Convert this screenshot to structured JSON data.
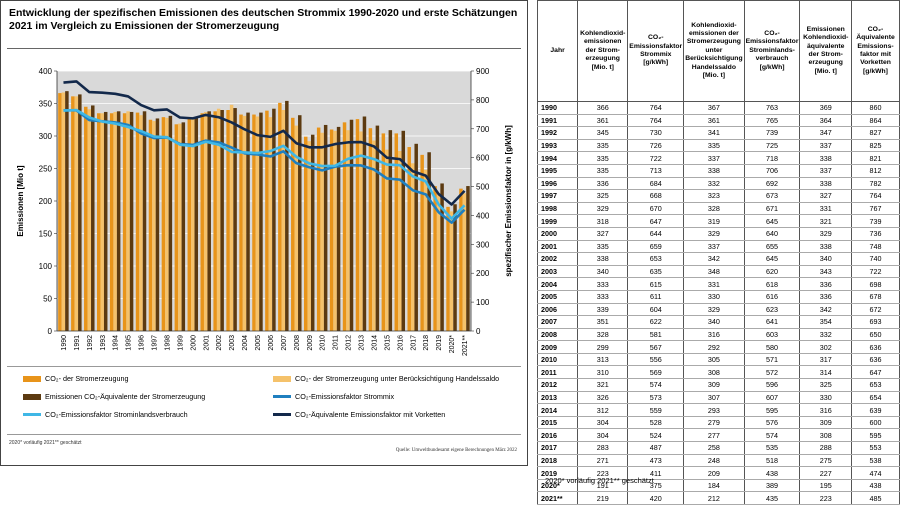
{
  "chart_title": "Entwicklung der spezifischen Emissionen des deutschen Strommix 1990-2020 und erste Schätzungen 2021 im Vergleich zu Emissionen der Stromerzeugung",
  "footnote": "2020* vorläufig   2021** geschätzt",
  "source": "Quelle: Umweltbundesamt eigene Berechnungen März 2022",
  "colors": {
    "bar1": "#E8941A",
    "bar2": "#F5C26B",
    "bar3": "#5C3A10",
    "line_mix": "#1F7FBF",
    "line_inland": "#3FB7E6",
    "line_vorkette": "#13294B",
    "plot_bg": "#D9D9D9"
  },
  "legend": [
    {
      "label": "CO₂- der Stromerzeugung",
      "type": "bar",
      "color": "#E8941A"
    },
    {
      "label": "CO₂- der Stromerzeugung unter Berücksichtigung Handelssaldo",
      "type": "bar",
      "color": "#F5C26B"
    },
    {
      "label": "Emissionen CO₂-Äquivalente der Stromerzeugung",
      "type": "bar",
      "color": "#5C3A10"
    },
    {
      "label": "CO₂-Emissionsfaktor Strommix",
      "type": "line",
      "color": "#1F7FBF"
    },
    {
      "label": "CO₂-Emissionsfaktor Strominlandsverbrauch",
      "type": "line",
      "color": "#3FB7E6"
    },
    {
      "label": "CO₂-Äquivalente Emissionsfaktor mit Vorketten",
      "type": "line",
      "color": "#13294B"
    }
  ],
  "table": {
    "headers": [
      "Jahr",
      "Kohlendioxid-emissionen der Strom-erzeugung [Mio. t]",
      "CO₂-Emissionsfaktor Strommix [g/kWh]",
      "Kohlendioxid-emissionen der Stromerzeugung unter Berücksichtigung Handelssaldo [Mio. t]",
      "CO₂-Emissionsfaktor Strominlands-verbrauch [g/kWh]",
      "Emissionen Kohlendioxid-äquivalente der Strom-erzeugung [Mio. t]",
      "CO₂-Äquivalente Emissions-faktor mit Vorketten [g/kWh]"
    ],
    "rows": [
      [
        "1990",
        "366",
        "764",
        "367",
        "763",
        "369",
        "860"
      ],
      [
        "1991",
        "361",
        "764",
        "361",
        "765",
        "364",
        "864"
      ],
      [
        "1992",
        "345",
        "730",
        "341",
        "739",
        "347",
        "827"
      ],
      [
        "1993",
        "335",
        "726",
        "335",
        "725",
        "337",
        "825"
      ],
      [
        "1994",
        "335",
        "722",
        "337",
        "718",
        "338",
        "821"
      ],
      [
        "1995",
        "335",
        "713",
        "338",
        "706",
        "337",
        "812"
      ],
      [
        "1996",
        "336",
        "684",
        "332",
        "692",
        "338",
        "782"
      ],
      [
        "1997",
        "325",
        "668",
        "323",
        "673",
        "327",
        "764"
      ],
      [
        "1998",
        "329",
        "670",
        "328",
        "671",
        "331",
        "767"
      ],
      [
        "1999",
        "318",
        "647",
        "319",
        "645",
        "321",
        "739"
      ],
      [
        "2000",
        "327",
        "644",
        "329",
        "640",
        "329",
        "736"
      ],
      [
        "2001",
        "335",
        "659",
        "337",
        "655",
        "338",
        "748"
      ],
      [
        "2002",
        "338",
        "653",
        "342",
        "645",
        "340",
        "740"
      ],
      [
        "2003",
        "340",
        "635",
        "348",
        "620",
        "343",
        "722"
      ],
      [
        "2004",
        "333",
        "615",
        "331",
        "618",
        "336",
        "698"
      ],
      [
        "2005",
        "333",
        "611",
        "330",
        "616",
        "336",
        "678"
      ],
      [
        "2006",
        "339",
        "604",
        "329",
        "623",
        "342",
        "672"
      ],
      [
        "2007",
        "351",
        "622",
        "340",
        "641",
        "354",
        "693"
      ],
      [
        "2008",
        "328",
        "581",
        "316",
        "603",
        "332",
        "650"
      ],
      [
        "2009",
        "299",
        "567",
        "292",
        "580",
        "302",
        "636"
      ],
      [
        "2010",
        "313",
        "556",
        "305",
        "571",
        "317",
        "636"
      ],
      [
        "2011",
        "310",
        "569",
        "308",
        "572",
        "314",
        "647"
      ],
      [
        "2012",
        "321",
        "574",
        "309",
        "596",
        "325",
        "653"
      ],
      [
        "2013",
        "326",
        "573",
        "307",
        "607",
        "330",
        "654"
      ],
      [
        "2014",
        "312",
        "559",
        "293",
        "595",
        "316",
        "639"
      ],
      [
        "2015",
        "304",
        "528",
        "279",
        "576",
        "309",
        "600"
      ],
      [
        "2016",
        "304",
        "524",
        "277",
        "574",
        "308",
        "595"
      ],
      [
        "2017",
        "283",
        "487",
        "258",
        "535",
        "288",
        "553"
      ],
      [
        "2018",
        "271",
        "473",
        "248",
        "518",
        "275",
        "538"
      ],
      [
        "2019",
        "223",
        "411",
        "209",
        "438",
        "227",
        "474"
      ],
      [
        "2020*",
        "191",
        "375",
        "184",
        "389",
        "195",
        "438"
      ],
      [
        "2021**",
        "219",
        "420",
        "212",
        "435",
        "223",
        "485"
      ]
    ]
  },
  "chart_data": {
    "type": "bar",
    "title": "Entwicklung der spezifischen Emissionen des deutschen Strommix 1990-2020 und erste Schätzungen 2021 im Vergleich zu Emissionen der Stromerzeugung",
    "categories": [
      "1990",
      "1991",
      "1992",
      "1993",
      "1994",
      "1995",
      "1996",
      "1997",
      "1998",
      "1999",
      "2000",
      "2001",
      "2002",
      "2003",
      "2004",
      "2005",
      "2006",
      "2007",
      "2008",
      "2009",
      "2010",
      "2011",
      "2012",
      "2013",
      "2014",
      "2015",
      "2016",
      "2017",
      "2018",
      "2019",
      "2020*",
      "2021**"
    ],
    "ylabel": "Emissionen  [Mio t]",
    "y2label": "spezifischer Emissionsfaktor  in [g/kWh]",
    "ylim": [
      0,
      400
    ],
    "y2lim": [
      0,
      900
    ],
    "yticks": [
      0,
      50,
      100,
      150,
      200,
      250,
      300,
      350,
      400
    ],
    "y2ticks": [
      0,
      100,
      200,
      300,
      400,
      500,
      600,
      700,
      800,
      900
    ],
    "grid": true,
    "legend_position": "bottom",
    "bar_series": [
      {
        "name": "CO₂- der Stromerzeugung",
        "values": [
          366,
          361,
          345,
          335,
          335,
          335,
          336,
          325,
          329,
          318,
          327,
          335,
          338,
          340,
          333,
          333,
          339,
          351,
          328,
          299,
          313,
          310,
          321,
          326,
          312,
          304,
          304,
          283,
          271,
          223,
          191,
          219
        ]
      },
      {
        "name": "CO₂- der Stromerzeugung unter Berücksichtigung Handelssaldo",
        "values": [
          367,
          361,
          341,
          335,
          337,
          338,
          332,
          323,
          328,
          319,
          329,
          337,
          342,
          348,
          331,
          330,
          329,
          340,
          316,
          292,
          305,
          308,
          309,
          307,
          293,
          279,
          277,
          258,
          248,
          209,
          184,
          212
        ]
      },
      {
        "name": "Emissionen CO₂-Äquivalente der Stromerzeugung",
        "values": [
          369,
          364,
          347,
          337,
          338,
          337,
          338,
          327,
          331,
          321,
          329,
          338,
          340,
          343,
          336,
          336,
          342,
          354,
          332,
          302,
          317,
          314,
          325,
          330,
          316,
          309,
          308,
          288,
          275,
          227,
          195,
          223
        ]
      }
    ],
    "line_series": [
      {
        "name": "CO₂-Emissionsfaktor Strommix",
        "values": [
          764,
          764,
          730,
          726,
          722,
          713,
          684,
          668,
          670,
          647,
          644,
          659,
          653,
          635,
          615,
          611,
          604,
          622,
          581,
          567,
          556,
          569,
          574,
          573,
          559,
          528,
          524,
          487,
          473,
          411,
          375,
          420
        ]
      },
      {
        "name": "CO₂-Emissionsfaktor Strominlandsverbrauch",
        "values": [
          763,
          765,
          739,
          725,
          718,
          706,
          692,
          673,
          671,
          645,
          640,
          655,
          645,
          620,
          618,
          616,
          623,
          641,
          603,
          580,
          571,
          572,
          596,
          607,
          595,
          576,
          574,
          535,
          518,
          438,
          389,
          435
        ]
      },
      {
        "name": "CO₂-Äquivalente Emissionsfaktor mit Vorketten",
        "values": [
          860,
          864,
          827,
          825,
          821,
          812,
          782,
          764,
          767,
          739,
          736,
          748,
          740,
          722,
          698,
          678,
          672,
          693,
          650,
          636,
          636,
          647,
          653,
          654,
          639,
          600,
          595,
          553,
          538,
          474,
          438,
          485
        ]
      }
    ]
  }
}
